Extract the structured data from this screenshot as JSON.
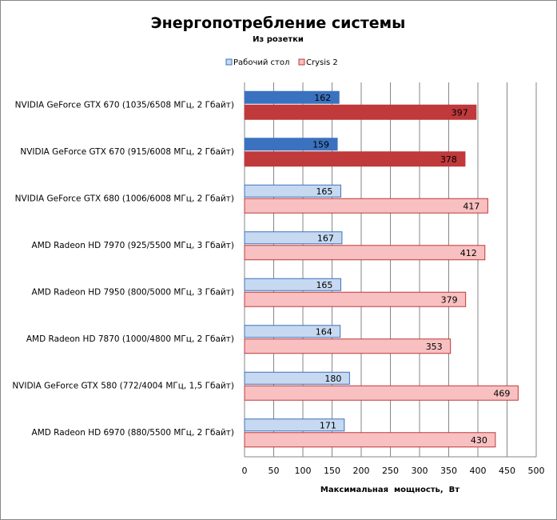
{
  "chart_data": {
    "type": "bar",
    "orientation": "horizontal",
    "title": "Энергопотребление системы",
    "subtitle": "Из розетки",
    "xlabel": "Максимальная  мощность,  Вт",
    "ylabel": "",
    "xlim": [
      0,
      500
    ],
    "xticks": [
      0,
      50,
      100,
      150,
      200,
      250,
      300,
      350,
      400,
      450,
      500
    ],
    "grid": true,
    "legend_position": "top",
    "categories": [
      "NVIDIA GeForce GTX 670 (1035/6508 МГц, 2 Гбайт)",
      "NVIDIA GeForce GTX 670 (915/6008 МГц, 2 Гбайт)",
      "NVIDIA GeForce GTX 680 (1006/6008 МГц, 2 Гбайт)",
      "AMD Radeon HD 7970 (925/5500 МГц, 3 Гбайт)",
      "AMD Radeon HD 7950 (800/5000 МГц, 3 Гбайт)",
      "AMD Radeon HD 7870 (1000/4800 МГц, 2 Гбайт)",
      "NVIDIA GeForce GTX 580 (772/4004 МГц, 1,5 Гбайт)",
      "AMD Radeon HD 6970 (880/5500 МГц, 2 Гбайт)"
    ],
    "highlighted_categories": [
      0,
      1
    ],
    "series": [
      {
        "name": "Рабочий стол",
        "values": [
          162,
          159,
          165,
          167,
          165,
          164,
          180,
          171
        ],
        "color": "#c6d9f1",
        "highlight_color": "#3b72bf"
      },
      {
        "name": "Crysis 2",
        "values": [
          397,
          378,
          417,
          412,
          379,
          353,
          469,
          430
        ],
        "color": "#f8c0c0",
        "highlight_color": "#c0393b"
      }
    ]
  }
}
